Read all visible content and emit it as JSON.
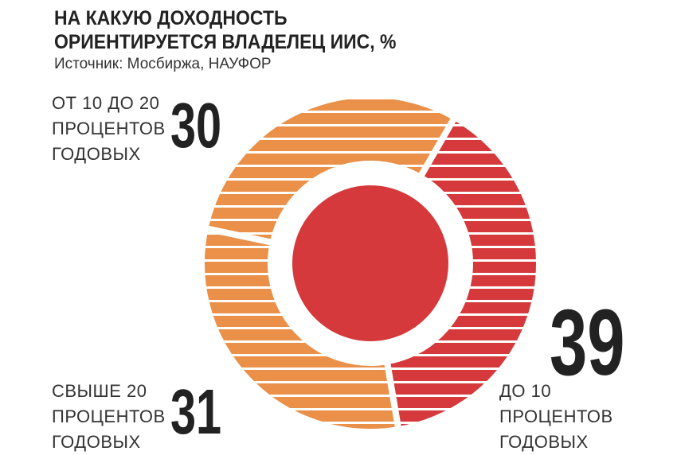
{
  "chart_data": {
    "type": "pie",
    "title": [
      "НА КАКУЮ ДОХОДНОСТЬ",
      "ОРИЕНТИРУЕТСЯ ВЛАДЕЛЕЦ ИИС, %"
    ],
    "subtitle": "Источник: Мосбиржа, НАУФОР",
    "categories": [
      "ДО 10 ПРОЦЕНТОВ ГОДОВЫХ",
      "СВЫШЕ 20 ПРОЦЕНТОВ ГОДОВЫХ",
      "ОТ 10 ДО 20 ПРОЦЕНТОВ ГОДОВЫХ"
    ],
    "values": [
      39,
      31,
      30
    ],
    "colors": [
      "#d5393b",
      "#ea9048",
      "#ea9048"
    ]
  }
}
